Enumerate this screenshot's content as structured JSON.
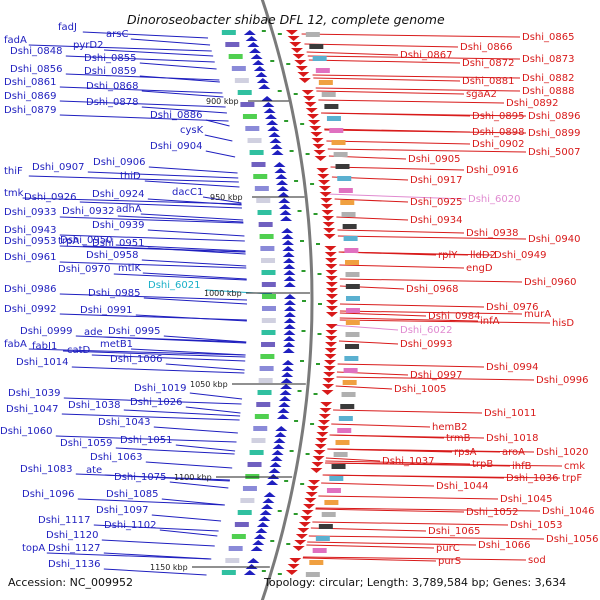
{
  "title": "Dinoroseobacter shibae DFL 12, complete genome",
  "footer": {
    "accession": "Accession: NC_009952",
    "summary": "Topology: circular; Length: 3,789,584 bp; Genes: 3,634"
  },
  "colors": {
    "forward": "#1f1fbf",
    "reverse": "#d81a1a",
    "rna_cyan": "#1ab0c8",
    "rna_pink": "#e08ad0",
    "backbone": "#7a7a7a"
  },
  "ticks": [
    "900 kbp",
    "950 kbp",
    "1000 kbp",
    "1050 kbp",
    "1100 kbp",
    "1150 kbp"
  ],
  "left_labels": [
    "fadJ",
    "arsC",
    "fadA",
    "Dshi_0848",
    "pyrD2",
    "Dshi_0855",
    "Dshi_0856",
    "Dshi_0859",
    "Dshi_0861",
    "Dshi_0868",
    "Dshi_0869",
    "Dshi_0878",
    "Dshi_0879",
    "Dshi_0886",
    "cysK",
    "Dshi_0904",
    "Dshi_0906",
    "thiF",
    "Dshi_0907",
    "thiD",
    "tmk",
    "Dshi_0926",
    "Dshi_0924",
    "dacC1",
    "Dshi_0933",
    "Dshi_0932",
    "adhA",
    "Dshi_0939",
    "Dshi_0943",
    "Dshi_0950",
    "Dshi_0953",
    "trpA",
    "Dshi_0951",
    "Dshi_0961",
    "Dshi_0958",
    "Dshi_0970",
    "mtlK",
    "Dshi_0986",
    "Dshi_0985",
    "Dshi_0992",
    "Dshi_0991",
    "Dshi_0999",
    "ade",
    "Dshi_0995",
    "fabA",
    "fabI1",
    "catD",
    "metB1",
    "Dshi_1014",
    "Dshi_1006",
    "Dshi_1019",
    "Dshi_1039",
    "Dshi_1026",
    "Dshi_1047",
    "Dshi_1038",
    "Dshi_1043",
    "Dshi_1060",
    "Dshi_1051",
    "Dshi_1059",
    "Dshi_1063",
    "Dshi_1083",
    "ate",
    "Dshi_1075",
    "Dshi_1096",
    "Dshi_1085",
    "Dshi_1097",
    "Dshi_1117",
    "Dshi_1102",
    "Dshi_1120",
    "topA",
    "Dshi_1127",
    "Dshi_1136"
  ],
  "cyan_labels": [
    "Dshi_6021"
  ],
  "right_labels": [
    "Dshi_0865",
    "Dshi_0866",
    "Dshi_0867",
    "Dshi_0873",
    "Dshi_0872",
    "Dshi_0882",
    "Dshi_0881",
    "sgaA2",
    "Dshi_0888",
    "Dshi_0892",
    "Dshi_0895",
    "Dshi_0896",
    "Dshi_0898",
    "Dshi_0899",
    "Dshi_0902",
    "Dshi_5007",
    "Dshi_0905",
    "Dshi_0916",
    "Dshi_0917",
    "Dshi_0925",
    "Dshi_0934",
    "Dshi_0938",
    "Dshi_0940",
    "rplY",
    "lldD2",
    "Dshi_0949",
    "engD",
    "Dshi_0960",
    "Dshi_0968",
    "Dshi_0976",
    "Dshi_0984",
    "infA",
    "murA",
    "hisD",
    "Dshi_0993",
    "Dshi_0994",
    "Dshi_0997",
    "Dshi_0996",
    "Dshi_1005",
    "Dshi_1011",
    "hemB2",
    "trmB",
    "Dshi_1018",
    "rpsA",
    "aroA",
    "Dshi_1020",
    "Dshi_1037",
    "trpB",
    "ihfB",
    "cmk",
    "Dshi_1036",
    "trpF",
    "Dshi_1044",
    "Dshi_1045",
    "Dshi_1052",
    "Dshi_1046",
    "Dshi_1053",
    "Dshi_1065",
    "Dshi_1056",
    "purC",
    "Dshi_1066",
    "purS",
    "sod"
  ],
  "pink_labels": [
    "Dshi_6020",
    "Dshi_6022"
  ]
}
